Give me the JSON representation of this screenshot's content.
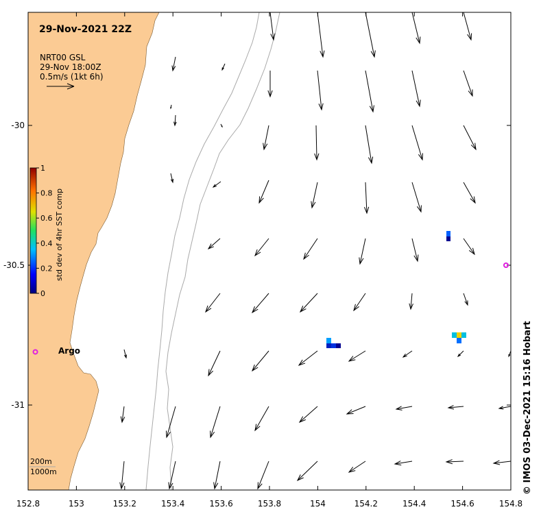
{
  "title": "29-Nov-2021 22Z",
  "vector_info": {
    "source": "NRT00 GSL",
    "time": "29-Nov 18:00Z",
    "scale": "0.5m/s (1kt 6h)"
  },
  "colorbar": {
    "label": "std dev of 4hr SST comp",
    "ticks": [
      "0",
      "0.2",
      "0.4",
      "0.6",
      "0.8",
      "1"
    ]
  },
  "axes": {
    "x_ticks": [
      "152.8",
      "153",
      "153.2",
      "153.4",
      "153.6",
      "153.8",
      "154",
      "154.2",
      "154.4",
      "154.6",
      "154.8"
    ],
    "y_ticks": [
      "-30",
      "-30.5",
      "-31"
    ],
    "x_range": [
      152.8,
      154.8
    ],
    "y_range": [
      -29.6,
      -31.3
    ]
  },
  "contours": {
    "c200": "200m",
    "c1000": "1000m"
  },
  "argo": {
    "label": "Argo",
    "floats": [
      [
        152.83,
        -30.81
      ],
      [
        154.78,
        -30.5
      ]
    ]
  },
  "credit": "© IMOS 03-Dec-2021 15:16 Hobart",
  "colors": {
    "land": "#fbcb94",
    "contour": "#a9a9a9",
    "argo": "#e020e0"
  }
}
